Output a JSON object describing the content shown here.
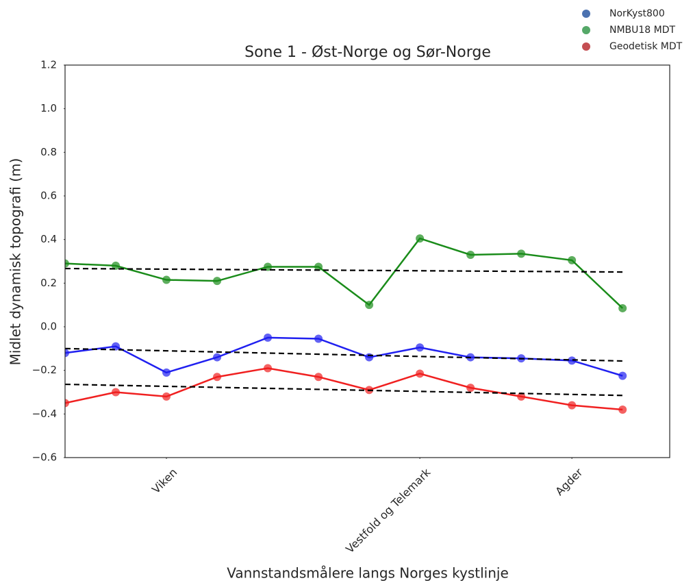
{
  "chart_data": {
    "type": "line",
    "title": "Sone 1 - Øst-Norge og Sør-Norge",
    "xlabel": "Vannstandsmålere langs Norges kystlinje",
    "ylabel": "Midlet dynamisk topografi (m)",
    "x": [
      0,
      1,
      2,
      3,
      4,
      5,
      6,
      7,
      8,
      9,
      10,
      11
    ],
    "xlim": [
      0,
      11.93
    ],
    "xticks": [
      {
        "value": 2,
        "label": "Viken"
      },
      {
        "value": 7,
        "label": "Vestfold og Telemark"
      },
      {
        "value": 10,
        "label": "Agder"
      }
    ],
    "ylim": [
      -0.6,
      1.2
    ],
    "yticks": [
      {
        "value": -0.6,
        "label": "−0.6"
      },
      {
        "value": -0.4,
        "label": "−0.4"
      },
      {
        "value": -0.2,
        "label": "−0.2"
      },
      {
        "value": 0,
        "label": "0.0"
      },
      0.2,
      0.4,
      0.6,
      0.8,
      {
        "value": 1,
        "label": "1.0"
      },
      {
        "value": 1.2,
        "label": "1.2"
      }
    ],
    "grid": false,
    "legend": "upper right",
    "trend_color": "#000000",
    "series": [
      {
        "name": "NorKyst800",
        "color": "#2020f0",
        "legend_color": "#4c72b0",
        "values": [
          -0.12,
          -0.09,
          -0.21,
          -0.14,
          -0.05,
          -0.055,
          -0.14,
          -0.095,
          -0.14,
          -0.145,
          -0.155,
          -0.225
        ],
        "trend": [
          -0.1,
          -0.157
        ]
      },
      {
        "name": "NMBU18 MDT",
        "color": "#1a8c1a",
        "legend_color": "#55a868",
        "values": [
          0.29,
          0.28,
          0.215,
          0.21,
          0.275,
          0.275,
          0.1,
          0.405,
          0.33,
          0.335,
          0.305,
          0.085
        ],
        "trend": [
          0.267,
          0.251
        ]
      },
      {
        "name": "Geodetisk MDT",
        "color": "#f02020",
        "legend_color": "#c44e52",
        "values": [
          -0.35,
          -0.3,
          -0.32,
          -0.23,
          -0.19,
          -0.23,
          -0.29,
          -0.215,
          -0.28,
          -0.32,
          -0.36,
          -0.38
        ],
        "trend": [
          -0.264,
          -0.315
        ]
      }
    ]
  }
}
